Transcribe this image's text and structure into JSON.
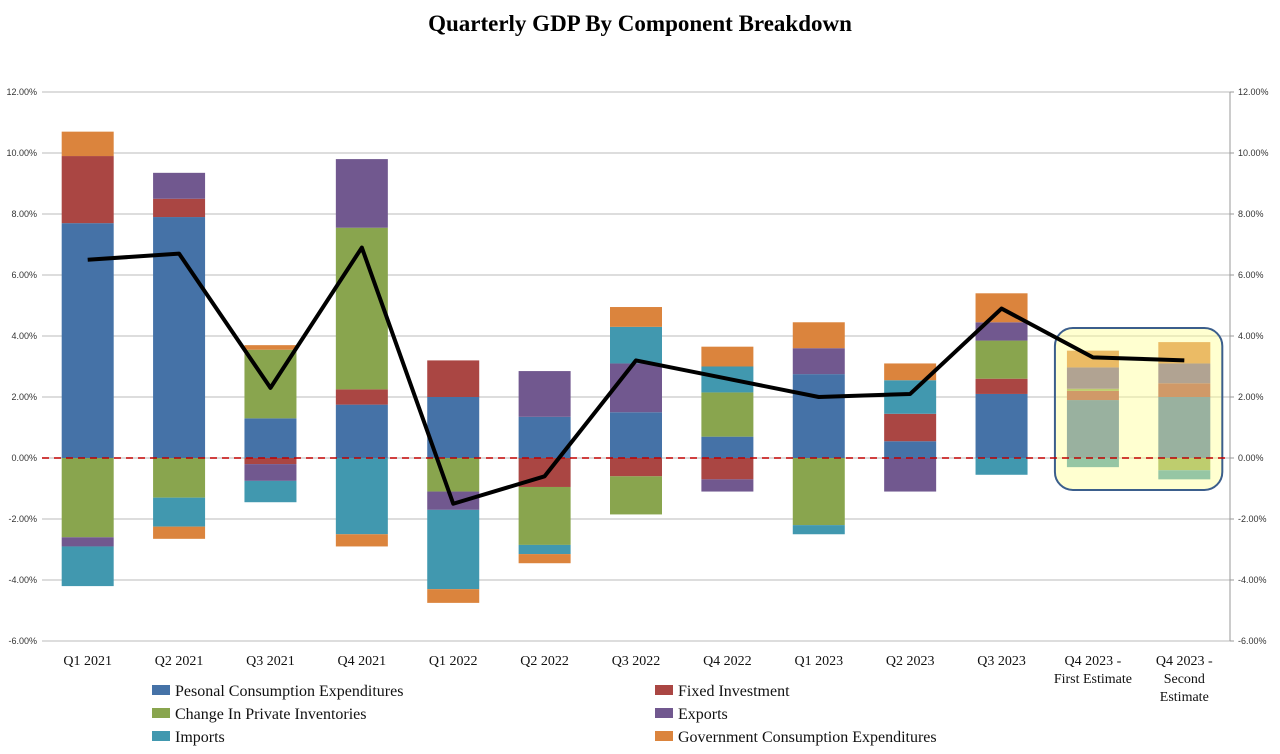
{
  "chart_data": {
    "type": "bar",
    "stacked": true,
    "title": "Quarterly GDP By Component Breakdown",
    "xlabel": "",
    "ylabel": "",
    "ylim": [
      -6,
      12
    ],
    "ytick_step": 2,
    "ytick_labels": [
      "-6.00%",
      "-4.00%",
      "-2.00%",
      "0.00%",
      "2.00%",
      "4.00%",
      "6.00%",
      "8.00%",
      "10.00%",
      "12.00%"
    ],
    "categories": [
      [
        "Q1 2021"
      ],
      [
        "Q2 2021"
      ],
      [
        "Q3 2021"
      ],
      [
        "Q4 2021"
      ],
      [
        "Q1 2022"
      ],
      [
        "Q2 2022"
      ],
      [
        "Q3 2022"
      ],
      [
        "Q4 2022"
      ],
      [
        "Q1 2023"
      ],
      [
        "Q2 2023"
      ],
      [
        "Q3 2023"
      ],
      [
        "Q4 2023 -",
        "First Estimate"
      ],
      [
        "Q4 2023 -",
        "Second",
        "Estimate"
      ]
    ],
    "series": [
      {
        "name": "Pesonal Consumption Expenditures",
        "color": "#4572A7",
        "values": [
          7.7,
          7.9,
          1.3,
          1.75,
          2.0,
          1.35,
          1.5,
          0.7,
          2.75,
          0.55,
          2.1,
          1.9,
          2.0
        ]
      },
      {
        "name": "Fixed Investment",
        "color": "#AA4643",
        "values": [
          2.2,
          0.6,
          -0.2,
          0.5,
          1.2,
          -0.95,
          -0.6,
          -0.7,
          0.0,
          0.9,
          0.5,
          0.3,
          0.45
        ]
      },
      {
        "name": "Change In Private Inventories",
        "color": "#89A54E",
        "values": [
          -2.6,
          -1.3,
          2.25,
          5.3,
          -1.1,
          -1.9,
          -1.25,
          1.45,
          -2.2,
          0.0,
          1.25,
          0.07,
          -0.4
        ]
      },
      {
        "name": "Exports",
        "color": "#71588F",
        "values": [
          -0.3,
          0.85,
          -0.55,
          2.25,
          -0.6,
          1.5,
          1.6,
          -0.4,
          0.85,
          -1.1,
          0.6,
          0.7,
          0.65
        ]
      },
      {
        "name": "Imports",
        "color": "#4198AF",
        "values": [
          -1.3,
          -0.95,
          -0.7,
          -2.5,
          -2.6,
          -0.3,
          1.2,
          0.85,
          -0.3,
          1.1,
          -0.55,
          -0.3,
          -0.3
        ]
      },
      {
        "name": "Government Consumption Expenditures",
        "color": "#DB843D",
        "values": [
          0.8,
          -0.4,
          0.15,
          -0.4,
          -0.45,
          -0.3,
          0.65,
          0.65,
          0.85,
          0.55,
          0.95,
          0.55,
          0.7
        ]
      }
    ],
    "line": {
      "name": "GDP",
      "color": "#000000",
      "values": [
        6.5,
        6.7,
        2.3,
        6.9,
        -1.5,
        -0.6,
        3.2,
        2.6,
        2.0,
        2.1,
        4.9,
        3.3,
        3.2
      ]
    },
    "highlight_categories": [
      11,
      12
    ],
    "zero_line_color": "#C00000",
    "grid": true,
    "legend": "bottom"
  }
}
